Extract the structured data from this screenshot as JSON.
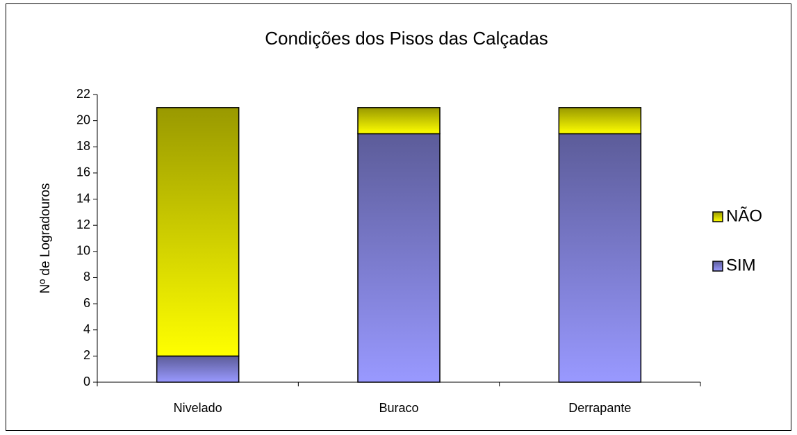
{
  "chart_data": {
    "type": "stacked_bar",
    "title": "Condições dos Pisos das Calçadas",
    "y_label": "Nº de Logradouros",
    "categories": [
      "Nivelado",
      "Buraco",
      "Derrapante"
    ],
    "series": [
      {
        "name": "SIM",
        "color": "#9999ff",
        "values": [
          2,
          19,
          19
        ]
      },
      {
        "name": "NÃO",
        "color": "#ffff00",
        "values": [
          19,
          2,
          2
        ]
      }
    ],
    "ylim": [
      0,
      22
    ],
    "yticks": [
      0,
      2,
      4,
      6,
      8,
      10,
      12,
      14,
      16,
      18,
      20,
      22
    ],
    "legend": "right"
  }
}
